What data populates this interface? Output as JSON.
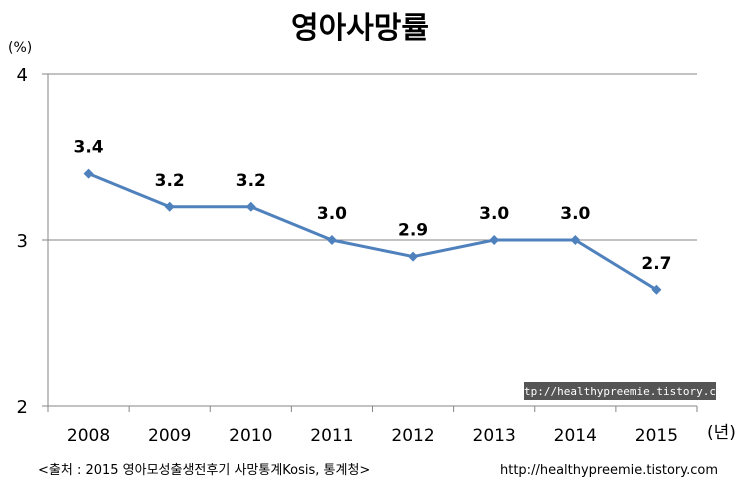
{
  "chart_data": {
    "type": "line",
    "title": "영아사망률",
    "yunit": "(%)",
    "xunit": "(년)",
    "categories": [
      "2008",
      "2009",
      "2010",
      "2011",
      "2012",
      "2013",
      "2014",
      "2015"
    ],
    "series": [
      {
        "values": [
          3.4,
          3.2,
          3.2,
          3.0,
          2.9,
          3.0,
          3.0,
          2.7
        ],
        "labels": [
          "3.4",
          "3.2",
          "3.2",
          "3.0",
          "2.9",
          "3.0",
          "3.0",
          "2.7"
        ]
      }
    ],
    "ylim": [
      2,
      4
    ],
    "yticks": [
      "2",
      "3",
      "4"
    ],
    "grid": true,
    "line_color": "#4f81bd"
  },
  "source": "<출처 : 2015 영아모성출생전후기 사망통계Kosis, 통계청>",
  "url": "http://healthypreemie.tistory.com",
  "watermark": "http://healthypreemie.tistory.com"
}
